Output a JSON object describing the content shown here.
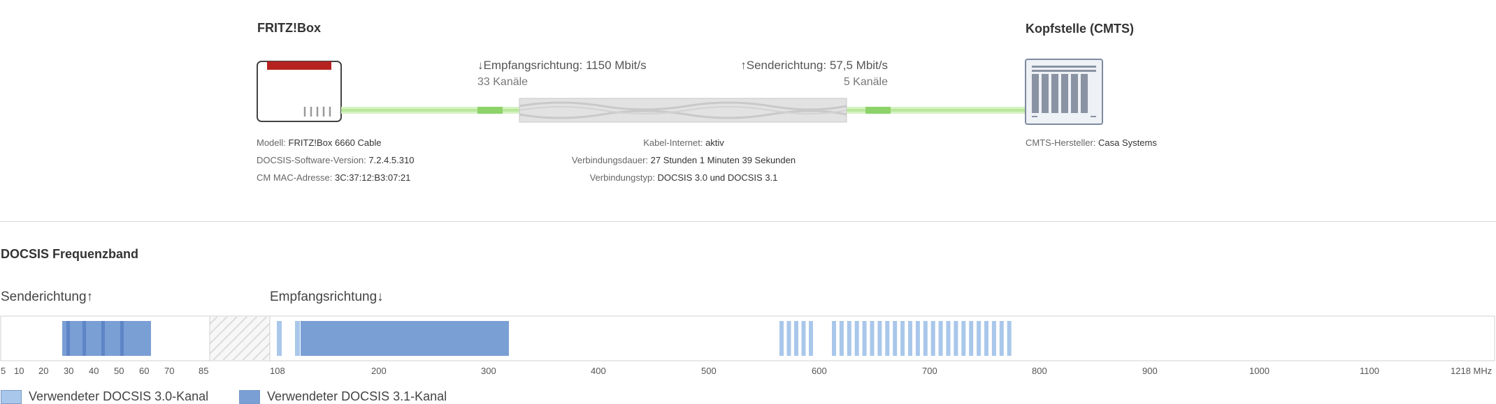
{
  "device": {
    "title": "FRITZ!Box",
    "info": [
      {
        "label": "Modell: ",
        "value": "FRITZ!Box 6660 Cable"
      },
      {
        "label": "DOCSIS-Software-Version: ",
        "value": "7.2.4.5.310"
      },
      {
        "label": "CM MAC-Adresse: ",
        "value": "3C:37:12:B3:07:21"
      }
    ]
  },
  "cmts": {
    "title": "Kopfstelle (CMTS)",
    "info": [
      {
        "label": "CMTS-Hersteller: ",
        "value": "Casa Systems"
      }
    ]
  },
  "link": {
    "down": {
      "label": "↓Empfangsrichtung: ",
      "speed": "1150 Mbit/s",
      "channels": "33 Kanäle"
    },
    "up": {
      "label": "↑Senderichtung: ",
      "speed": "57,5 Mbit/s",
      "channels": "5 Kanäle"
    },
    "info": [
      {
        "label": "Kabel-Internet: ",
        "value": "aktiv"
      },
      {
        "label": "Verbindungsdauer: ",
        "value": "27 Stunden 1 Minuten 39 Sekunden"
      },
      {
        "label": "Verbindungstyp: ",
        "value": "DOCSIS 3.0 und DOCSIS 3.1"
      }
    ]
  },
  "band": {
    "title": "DOCSIS Frequenzband",
    "up_label": "Senderichtung↑",
    "down_label": "Empfangsrichtung↓",
    "up_ticks": [
      "5",
      "10",
      "20",
      "30",
      "40",
      "50",
      "60",
      "70",
      "85"
    ],
    "down_ticks": [
      "108",
      "200",
      "300",
      "400",
      "500",
      "600",
      "700",
      "800",
      "900",
      "1000",
      "1100",
      "1218 MHz"
    ],
    "legend": [
      {
        "label": "Verwendeter DOCSIS 3.0-Kanal",
        "color": "#a9c7ea"
      },
      {
        "label": "Verwendeter DOCSIS 3.1-Kanal",
        "color": "#7a9fd4"
      }
    ]
  },
  "colors": {
    "accent_red": "#b5221f",
    "link_green": "#8ed36a",
    "channel_31": "#7a9fd4",
    "channel_30": "#a9c7ea"
  }
}
